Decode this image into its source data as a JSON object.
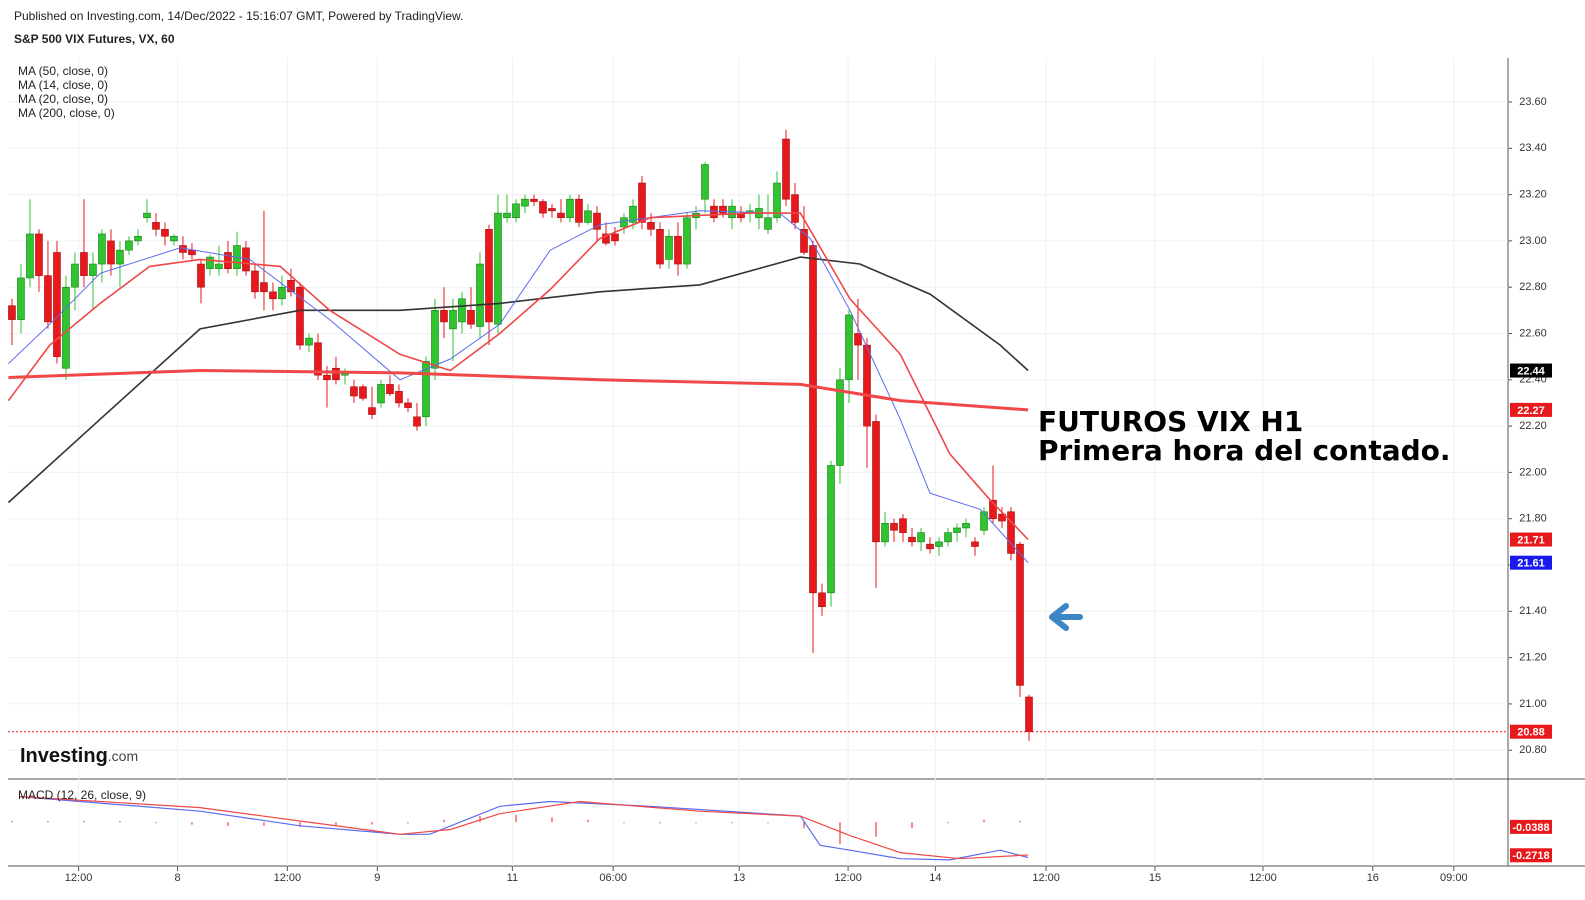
{
  "header": {
    "published": "Published on Investing.com, 14/Dec/2022 - 15:16:07 GMT, Powered by TradingView.",
    "symbol": "S&P 500 VIX Futures, VX, 60"
  },
  "logo": {
    "name": "Investing",
    "suffix": ".com"
  },
  "chart_data": [
    {
      "type": "candlestick",
      "up_color": "#2ec52e",
      "down_color": "#e8191c",
      "xlim": [
        -0.44,
        166.22
      ],
      "ylim": [
        20.68,
        23.79
      ],
      "xticks": [
        {
          "value": 7.4,
          "label": "12:00"
        },
        {
          "value": 18.4,
          "label": "8"
        },
        {
          "value": 30.6,
          "label": "12:00"
        },
        {
          "value": 40.6,
          "label": "9"
        },
        {
          "value": 55.6,
          "label": "11"
        },
        {
          "value": 66.8,
          "label": "06:00"
        },
        {
          "value": 80.8,
          "label": "13"
        },
        {
          "value": 92.9,
          "label": "12:00"
        },
        {
          "value": 102.6,
          "label": "14"
        },
        {
          "value": 114.9,
          "label": "12:00"
        },
        {
          "value": 127,
          "label": "15"
        },
        {
          "value": 139,
          "label": "12:00"
        },
        {
          "value": 151.2,
          "label": "16"
        },
        {
          "value": 160.2,
          "label": "09:00"
        }
      ],
      "yticks": [
        {
          "value": 20.8,
          "label": "20.80"
        },
        {
          "value": 21,
          "label": "21.00"
        },
        {
          "value": 21.2,
          "label": "21.20"
        },
        {
          "value": 21.4,
          "label": "21.40"
        },
        {
          "value": 21.6,
          "label": "21.60"
        },
        {
          "value": 21.8,
          "label": "21.80"
        },
        {
          "value": 22,
          "label": "22.00"
        },
        {
          "value": 22.2,
          "label": "22.20"
        },
        {
          "value": 22.4,
          "label": "22.40"
        },
        {
          "value": 22.6,
          "label": "22.60"
        },
        {
          "value": 22.8,
          "label": "22.80"
        },
        {
          "value": 23,
          "label": "23.00"
        },
        {
          "value": 23.2,
          "label": "23.20"
        },
        {
          "value": 23.4,
          "label": "23.40"
        },
        {
          "value": 23.6,
          "label": "23.60"
        }
      ],
      "grid": true,
      "ohlc": [
        [
          22.72,
          22.75,
          22.55,
          22.66
        ],
        [
          22.66,
          22.9,
          22.6,
          22.84
        ],
        [
          22.84,
          23.18,
          22.8,
          23.03
        ],
        [
          23.03,
          23.05,
          22.78,
          22.85
        ],
        [
          22.85,
          23.0,
          22.62,
          22.65
        ],
        [
          22.95,
          23.0,
          22.47,
          22.5
        ],
        [
          22.45,
          22.85,
          22.4,
          22.8
        ],
        [
          22.8,
          22.95,
          22.7,
          22.9
        ],
        [
          22.95,
          23.18,
          22.8,
          22.85
        ],
        [
          22.85,
          22.95,
          22.7,
          22.9
        ],
        [
          22.9,
          23.05,
          22.82,
          23.03
        ],
        [
          23.0,
          23.05,
          22.85,
          22.9
        ],
        [
          22.9,
          23.0,
          22.8,
          22.96
        ],
        [
          22.96,
          23.02,
          22.94,
          23.0
        ],
        [
          23.0,
          23.05,
          22.98,
          23.02
        ],
        [
          23.1,
          23.18,
          23.08,
          23.12
        ],
        [
          23.08,
          23.12,
          23.02,
          23.05
        ],
        [
          23.05,
          23.08,
          22.98,
          23.02
        ],
        [
          23.0,
          23.03,
          22.98,
          23.02
        ],
        [
          22.98,
          23.02,
          22.92,
          22.95
        ],
        [
          22.96,
          22.99,
          22.92,
          22.94
        ],
        [
          22.9,
          22.92,
          22.73,
          22.8
        ],
        [
          22.88,
          22.94,
          22.85,
          22.93
        ],
        [
          22.88,
          22.98,
          22.85,
          22.9
        ],
        [
          22.95,
          23.0,
          22.86,
          22.88
        ],
        [
          22.88,
          23.04,
          22.85,
          22.98
        ],
        [
          22.97,
          23.0,
          22.85,
          22.87
        ],
        [
          22.87,
          22.9,
          22.75,
          22.78
        ],
        [
          22.82,
          23.13,
          22.7,
          22.78
        ],
        [
          22.78,
          22.82,
          22.7,
          22.75
        ],
        [
          22.75,
          22.85,
          22.72,
          22.8
        ],
        [
          22.83,
          22.88,
          22.76,
          22.78
        ],
        [
          22.8,
          22.82,
          22.53,
          22.55
        ],
        [
          22.55,
          22.6,
          22.52,
          22.58
        ],
        [
          22.56,
          22.6,
          22.4,
          22.42
        ],
        [
          22.42,
          22.46,
          22.28,
          22.4
        ],
        [
          22.45,
          22.5,
          22.38,
          22.4
        ],
        [
          22.42,
          22.45,
          22.38,
          22.43
        ],
        [
          22.37,
          22.4,
          22.3,
          22.33
        ],
        [
          22.37,
          22.38,
          22.31,
          22.32
        ],
        [
          22.28,
          22.37,
          22.23,
          22.25
        ],
        [
          22.3,
          22.4,
          22.28,
          22.38
        ],
        [
          22.38,
          22.42,
          22.33,
          22.34
        ],
        [
          22.35,
          22.38,
          22.28,
          22.3
        ],
        [
          22.3,
          22.32,
          22.26,
          22.28
        ],
        [
          22.24,
          22.3,
          22.18,
          22.2
        ],
        [
          22.24,
          22.5,
          22.2,
          22.48
        ],
        [
          22.45,
          22.75,
          22.4,
          22.7
        ],
        [
          22.7,
          22.8,
          22.58,
          22.65
        ],
        [
          22.62,
          22.75,
          22.48,
          22.7
        ],
        [
          22.65,
          22.78,
          22.6,
          22.75
        ],
        [
          22.7,
          22.8,
          22.62,
          22.64
        ],
        [
          22.63,
          22.95,
          22.58,
          22.9
        ],
        [
          23.05,
          23.07,
          22.55,
          22.65
        ],
        [
          22.64,
          23.2,
          22.6,
          23.12
        ],
        [
          23.1,
          23.2,
          23.08,
          23.12
        ],
        [
          23.1,
          23.18,
          23.08,
          23.16
        ],
        [
          23.15,
          23.2,
          23.12,
          23.18
        ],
        [
          23.18,
          23.2,
          23.15,
          23.17
        ],
        [
          23.17,
          23.18,
          23.1,
          23.12
        ],
        [
          23.14,
          23.16,
          23.1,
          23.13
        ],
        [
          23.12,
          23.18,
          23.08,
          23.1
        ],
        [
          23.1,
          23.2,
          23.08,
          23.18
        ],
        [
          23.18,
          23.2,
          23.06,
          23.08
        ],
        [
          23.08,
          23.16,
          23.07,
          23.13
        ],
        [
          23.12,
          23.15,
          23.0,
          23.05
        ],
        [
          23.03,
          23.08,
          22.98,
          22.99
        ],
        [
          23.03,
          23.06,
          22.98,
          23.0
        ],
        [
          23.06,
          23.12,
          23.03,
          23.1
        ],
        [
          23.08,
          23.18,
          23.05,
          23.15
        ],
        [
          23.25,
          23.28,
          23.05,
          23.08
        ],
        [
          23.08,
          23.12,
          23.02,
          23.05
        ],
        [
          23.05,
          23.08,
          22.88,
          22.9
        ],
        [
          22.92,
          23.05,
          22.88,
          23.02
        ],
        [
          23.02,
          23.08,
          22.85,
          22.9
        ],
        [
          22.9,
          23.12,
          22.88,
          23.1
        ],
        [
          23.1,
          23.15,
          23.05,
          23.12
        ],
        [
          23.18,
          23.34,
          23.12,
          23.33
        ],
        [
          23.15,
          23.18,
          23.08,
          23.1
        ],
        [
          23.15,
          23.18,
          23.1,
          23.12
        ],
        [
          23.1,
          23.18,
          23.05,
          23.15
        ],
        [
          23.12,
          23.15,
          23.08,
          23.1
        ],
        [
          23.12,
          23.16,
          23.08,
          23.13
        ],
        [
          23.1,
          23.2,
          23.05,
          23.14
        ],
        [
          23.05,
          23.2,
          23.03,
          23.1
        ],
        [
          23.1,
          23.3,
          23.08,
          23.25
        ],
        [
          23.44,
          23.48,
          23.15,
          23.18
        ],
        [
          23.2,
          23.25,
          23.05,
          23.08
        ],
        [
          23.05,
          23.15,
          22.94,
          22.95
        ],
        [
          22.98,
          23.0,
          21.22,
          21.48
        ],
        [
          21.48,
          21.52,
          21.38,
          21.42
        ],
        [
          21.48,
          22.05,
          21.42,
          22.03
        ],
        [
          22.03,
          22.45,
          21.95,
          22.4
        ],
        [
          22.4,
          22.7,
          22.3,
          22.68
        ],
        [
          22.6,
          22.75,
          22.4,
          22.55
        ],
        [
          22.55,
          22.58,
          22.02,
          22.2
        ],
        [
          22.22,
          22.25,
          21.5,
          21.7
        ],
        [
          21.7,
          21.83,
          21.68,
          21.78
        ],
        [
          21.78,
          21.8,
          21.7,
          21.75
        ],
        [
          21.8,
          21.82,
          21.7,
          21.74
        ],
        [
          21.72,
          21.76,
          21.68,
          21.7
        ],
        [
          21.7,
          21.76,
          21.66,
          21.74
        ],
        [
          21.69,
          21.72,
          21.65,
          21.67
        ],
        [
          21.68,
          21.72,
          21.64,
          21.7
        ],
        [
          21.7,
          21.76,
          21.68,
          21.74
        ],
        [
          21.74,
          21.78,
          21.7,
          21.76
        ],
        [
          21.76,
          21.8,
          21.72,
          21.78
        ],
        [
          21.7,
          21.72,
          21.64,
          21.68
        ],
        [
          21.75,
          21.85,
          21.73,
          21.83
        ],
        [
          21.88,
          22.03,
          21.78,
          21.8
        ],
        [
          21.82,
          21.85,
          21.76,
          21.79
        ],
        [
          21.83,
          21.85,
          21.62,
          21.65
        ],
        [
          21.69,
          21.7,
          21.03,
          21.08
        ],
        [
          21.03,
          21.04,
          20.84,
          20.88
        ]
      ],
      "series": [
        {
          "name": "MA (50, close, 0)",
          "color": "#333333",
          "width": 1.6,
          "x": [
            -0.4,
            9.8,
            20.9,
            32,
            43.1,
            54.2,
            65.3,
            76.4,
            87.6,
            94.2,
            102,
            109.8,
            112.9
          ],
          "values": [
            21.87,
            22.23,
            22.62,
            22.7,
            22.7,
            22.73,
            22.78,
            22.81,
            22.93,
            22.9,
            22.77,
            22.55,
            22.44
          ]
        },
        {
          "name": "MA (14, close, 0)",
          "color": "#5b6cf0",
          "width": 1,
          "x": [
            -0.4,
            4.2,
            9.8,
            18.7,
            26.4,
            35.3,
            43.1,
            48.7,
            54.2,
            59.8,
            65.3,
            76.4,
            85.3,
            88.7,
            93.1,
            98.7,
            102,
            107.6,
            112.9
          ],
          "values": [
            22.47,
            22.64,
            22.86,
            22.97,
            22.92,
            22.66,
            22.4,
            22.49,
            22.64,
            22.96,
            23.07,
            23.13,
            23.12,
            23.01,
            22.7,
            22.23,
            21.91,
            21.84,
            21.61
          ]
        },
        {
          "name": "MA (20, close, 0)",
          "color": "#f04848",
          "width": 1.6,
          "x": [
            -0.4,
            4.2,
            9.8,
            15.3,
            20.9,
            29.8,
            35.3,
            43.1,
            48.7,
            54.2,
            59.8,
            65.3,
            70.9,
            82,
            87.6,
            93.1,
            98.7,
            104.2,
            108.7,
            112.9
          ],
          "values": [
            22.31,
            22.55,
            22.73,
            22.89,
            22.92,
            22.89,
            22.7,
            22.51,
            22.44,
            22.6,
            22.79,
            23.01,
            23.1,
            23.12,
            23.12,
            22.75,
            22.51,
            22.08,
            21.88,
            21.71
          ]
        },
        {
          "name": "MA (200, close, 0)",
          "color": "#f04848",
          "width": 3,
          "x": [
            -0.4,
            20.9,
            43.1,
            65.3,
            87.6,
            98.7,
            112.9
          ],
          "values": [
            22.41,
            22.44,
            22.43,
            22.4,
            22.38,
            22.31,
            22.27
          ]
        }
      ],
      "price_labels": [
        {
          "value": 22.44,
          "color": "#000000"
        },
        {
          "value": 22.27,
          "color": "#e8191c"
        },
        {
          "value": 21.71,
          "color": "#e8191c"
        },
        {
          "value": 21.61,
          "color": "#1a1af0"
        },
        {
          "value": 20.88,
          "color": "#e8191c"
        }
      ],
      "last_price": 20.88,
      "annotations": [
        "FUTUROS VIX H1",
        "Primera hora del contado."
      ]
    },
    {
      "type": "macd",
      "title": "MACD (12, 26, close, 9)",
      "xlim": [
        -0.44,
        166.22
      ],
      "ylim": [
        -0.36,
        0.33
      ],
      "series": [
        {
          "color": "#5b6cf0",
          "x": [
            0.9,
            20.9,
            32,
            43.1,
            46.4,
            54.2,
            59.8,
            70.9,
            87.6,
            89.8,
            93.1,
            98.7,
            104.2,
            109.8,
            112.9
          ],
          "values": [
            0.21,
            0.09,
            -0.03,
            -0.1,
            -0.1,
            0.13,
            0.17,
            0.13,
            0.05,
            -0.19,
            -0.23,
            -0.3,
            -0.31,
            -0.23,
            -0.29
          ]
        },
        {
          "color": "#f04848",
          "x": [
            0.9,
            20.9,
            32,
            43.1,
            48.7,
            54.2,
            63.1,
            76.4,
            87.6,
            93.1,
            98.7,
            105.3,
            112.9
          ],
          "values": [
            0.21,
            0.12,
            0.01,
            -0.1,
            -0.06,
            0.07,
            0.17,
            0.09,
            0.05,
            -0.11,
            -0.25,
            -0.3,
            -0.27
          ]
        }
      ],
      "histogram": {
        "color": "#e8191c",
        "x": [
          0,
          4,
          8,
          12,
          16,
          20,
          24,
          28,
          32,
          36,
          40,
          44,
          48,
          52,
          56,
          60,
          64,
          68,
          72,
          76,
          80,
          84,
          88,
          92,
          96,
          100,
          104,
          108,
          112
        ],
        "values": [
          0.01,
          0.01,
          0.01,
          0.01,
          0.0,
          -0.02,
          -0.03,
          -0.03,
          -0.04,
          -0.03,
          -0.02,
          -0.01,
          0.02,
          0.05,
          0.06,
          0.04,
          0.02,
          0.0,
          -0.01,
          0.0,
          0.0,
          0.0,
          -0.05,
          -0.18,
          -0.12,
          -0.05,
          0.0,
          0.02,
          0.01
        ]
      },
      "price_labels": [
        {
          "value": -0.0388,
          "color": "#e8191c"
        },
        {
          "value": -0.2718,
          "color": "#e8191c"
        }
      ]
    }
  ]
}
